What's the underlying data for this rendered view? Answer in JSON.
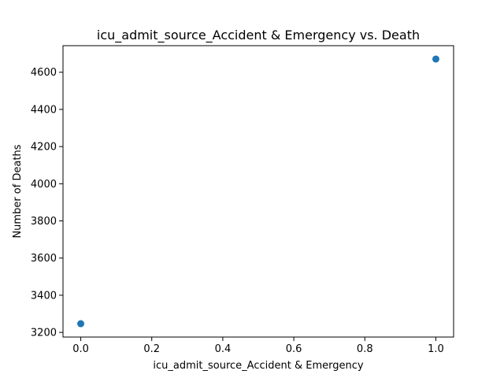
{
  "chart_data": {
    "type": "scatter",
    "title": "icu_admit_source_Accident & Emergency vs. Death",
    "xlabel": "icu_admit_source_Accident & Emergency",
    "ylabel": "Number of Deaths",
    "x": [
      0.0,
      1.0
    ],
    "y": [
      3247,
      4671
    ],
    "xlim": [
      -0.05,
      1.05
    ],
    "ylim": [
      3175,
      4743
    ],
    "xticks": [
      0.0,
      0.2,
      0.4,
      0.6,
      0.8,
      1.0
    ],
    "xtick_labels": [
      "0.0",
      "0.2",
      "0.4",
      "0.6",
      "0.8",
      "1.0"
    ],
    "yticks": [
      3200,
      3400,
      3600,
      3800,
      4000,
      4200,
      4400,
      4600
    ],
    "ytick_labels": [
      "3200",
      "3400",
      "3600",
      "3800",
      "4000",
      "4200",
      "4400",
      "4600"
    ],
    "grid": false,
    "marker_color": "#1f77b4"
  }
}
